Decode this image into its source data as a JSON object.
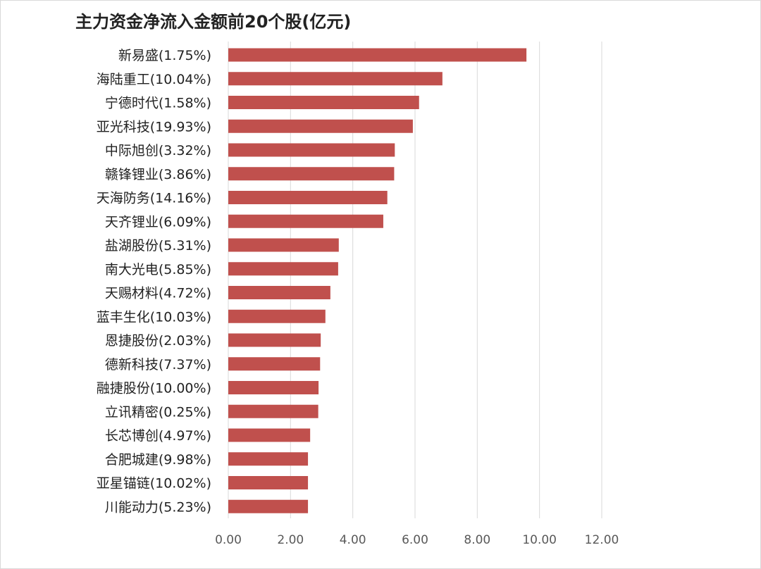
{
  "chart_data": {
    "type": "bar",
    "orientation": "horizontal",
    "title": "主力资金净流入金额前20个股(亿元)",
    "categories": [
      "新易盛(1.75%)",
      "海陆重工(10.04%)",
      "宁德时代(1.58%)",
      "亚光科技(19.93%)",
      "中际旭创(3.32%)",
      "赣锋锂业(3.86%)",
      "天海防务(14.16%)",
      "天齐锂业(6.09%)",
      "盐湖股份(5.31%)",
      "南大光电(5.85%)",
      "天赐材料(4.72%)",
      "蓝丰生化(10.03%)",
      "恩捷股份(2.03%)",
      "德新科技(7.37%)",
      "融捷股份(10.00%)",
      "立讯精密(0.25%)",
      "长芯博创(4.97%)",
      "合肥城建(9.98%)",
      "亚星锚链(10.02%)",
      "川能动力(5.23%)"
    ],
    "values": [
      9.58,
      6.88,
      6.13,
      5.93,
      5.35,
      5.33,
      5.11,
      4.98,
      3.55,
      3.53,
      3.28,
      3.12,
      2.97,
      2.95,
      2.9,
      2.89,
      2.63,
      2.56,
      2.56,
      2.56
    ],
    "xlim": [
      0,
      12
    ],
    "x_ticks": [
      "0.00",
      "2.00",
      "4.00",
      "6.00",
      "8.00",
      "10.00",
      "12.00"
    ],
    "bar_color": "#c0504d",
    "grid": true,
    "gridline_color": "#d9d9d9"
  }
}
